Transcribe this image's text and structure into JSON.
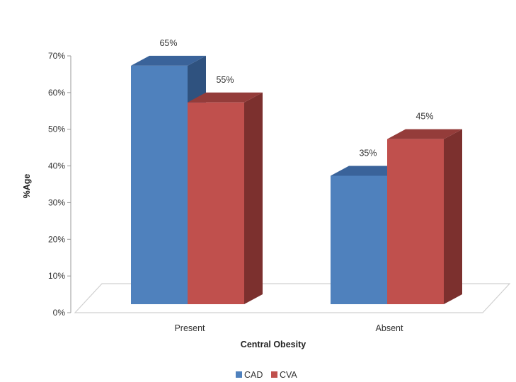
{
  "chart_data": {
    "type": "bar",
    "categories": [
      "Present",
      "Absent"
    ],
    "series": [
      {
        "name": "CAD",
        "values": [
          65,
          35
        ],
        "labels": [
          "65%",
          "35%"
        ]
      },
      {
        "name": "CVA",
        "values": [
          55,
          45
        ],
        "labels": [
          "55%",
          "45%"
        ]
      }
    ],
    "colors": {
      "CAD": {
        "front": "#4f81bd",
        "top": "#3a639a",
        "side": "#2f527f"
      },
      "CVA": {
        "front": "#c0504d",
        "top": "#943c3a",
        "side": "#7c302e"
      }
    },
    "title": "",
    "xlabel": "Central Obesity",
    "ylabel": "%Age",
    "ylim": [
      0,
      70
    ],
    "yticks": [
      0,
      10,
      20,
      30,
      40,
      50,
      60,
      70
    ],
    "ytick_labels": [
      "0%",
      "10%",
      "20%",
      "30%",
      "40%",
      "50%",
      "60%",
      "70%"
    ],
    "grid": false,
    "legend": {
      "position": "bottom",
      "entries": [
        "CAD",
        "CVA"
      ]
    },
    "style": "3d-column"
  }
}
